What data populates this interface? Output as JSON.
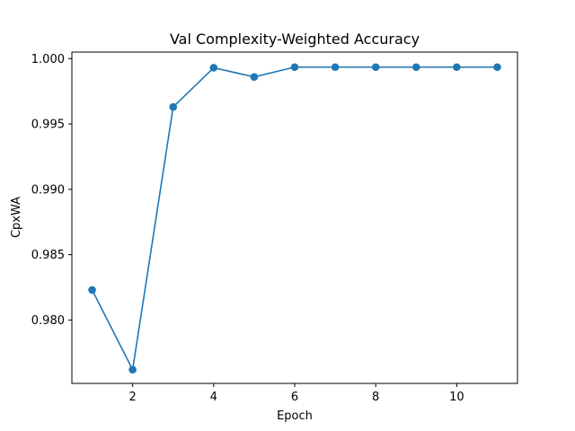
{
  "chart_data": {
    "type": "line",
    "title": "Val Complexity-Weighted Accuracy",
    "xlabel": "Epoch",
    "ylabel": "CpxWA",
    "x": [
      1,
      2,
      3,
      4,
      5,
      6,
      7,
      8,
      9,
      10,
      11
    ],
    "series": [
      {
        "values": [
          0.9823,
          0.9762,
          0.9963,
          0.9993,
          0.9986,
          0.99935,
          0.99935,
          0.99935,
          0.99935,
          0.99935,
          0.99935
        ],
        "color": "#1f77b4",
        "marker": "circle"
      }
    ],
    "xlim": [
      0.5,
      11.5
    ],
    "ylim": [
      0.97515,
      1.0005
    ],
    "xticks": [
      2,
      4,
      6,
      8,
      10
    ],
    "yticks": [
      0.98,
      0.985,
      0.99,
      0.995,
      1.0
    ],
    "ytick_labels": [
      "0.980",
      "0.985",
      "0.990",
      "0.995",
      "1.000"
    ],
    "grid": false
  }
}
